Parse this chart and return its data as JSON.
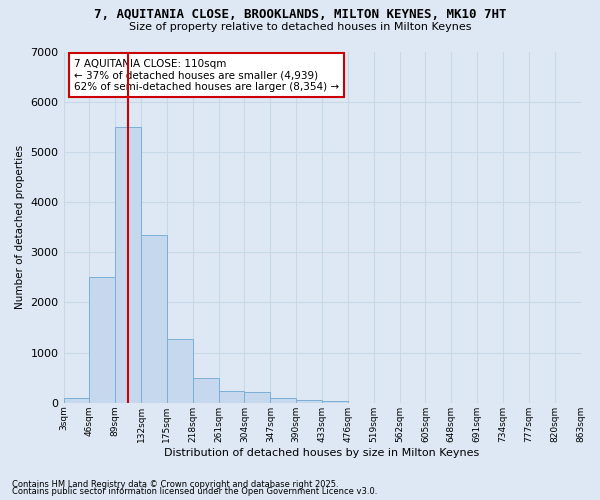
{
  "title": "7, AQUITANIA CLOSE, BROOKLANDS, MILTON KEYNES, MK10 7HT",
  "subtitle": "Size of property relative to detached houses in Milton Keynes",
  "xlabel": "Distribution of detached houses by size in Milton Keynes",
  "ylabel": "Number of detached properties",
  "bar_color": "#c5d8ee",
  "bar_edge_color": "#7aafd4",
  "grid_color": "#c8d8e8",
  "background_color": "#dde8f4",
  "annotation_line1": "7 AQUITANIA CLOSE: 110sqm",
  "annotation_line2": "← 37% of detached houses are smaller (4,939)",
  "annotation_line3": "62% of semi-detached houses are larger (8,354) →",
  "vline_x": 110,
  "annotation_box_color": "#ffffff",
  "annotation_box_edge": "#cc0000",
  "vline_color": "#cc0000",
  "bins": [
    3,
    46,
    89,
    132,
    175,
    218,
    261,
    304,
    347,
    390,
    433,
    476,
    519,
    562,
    605,
    648,
    691,
    734,
    777,
    820,
    863
  ],
  "counts": [
    100,
    2500,
    5500,
    3350,
    1280,
    490,
    230,
    220,
    100,
    55,
    30,
    0,
    0,
    0,
    0,
    0,
    0,
    0,
    0,
    0
  ],
  "ylim": [
    0,
    7000
  ],
  "yticks": [
    0,
    1000,
    2000,
    3000,
    4000,
    5000,
    6000,
    7000
  ],
  "footnote1": "Contains HM Land Registry data © Crown copyright and database right 2025.",
  "footnote2": "Contains public sector information licensed under the Open Government Licence v3.0."
}
